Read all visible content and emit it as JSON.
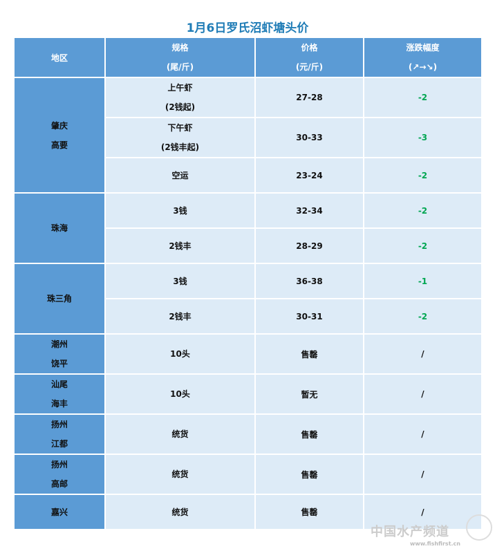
{
  "title": "1月6日罗氏沼虾塘头价",
  "headers": {
    "region": "地区",
    "spec": [
      "规格",
      "(尾/斤)"
    ],
    "price": [
      "价格",
      "(元/斤)"
    ],
    "change": [
      "涨跌幅度",
      "(↗→↘)"
    ]
  },
  "groups": [
    {
      "region": [
        "肇庆",
        "高要"
      ],
      "rows": [
        {
          "spec": [
            "上午虾",
            "(2钱起)"
          ],
          "price": "27-28",
          "change": "-2"
        },
        {
          "spec": [
            "下午虾",
            "(2钱丰起)"
          ],
          "price": "30-33",
          "change": "-3"
        },
        {
          "spec": [
            "空运"
          ],
          "price": "23-24",
          "change": "-2"
        }
      ]
    },
    {
      "region": [
        "珠海"
      ],
      "rows": [
        {
          "spec": [
            "3钱"
          ],
          "price": "32-34",
          "change": "-2"
        },
        {
          "spec": [
            "2钱丰"
          ],
          "price": "28-29",
          "change": "-2"
        }
      ]
    },
    {
      "region": [
        "珠三角"
      ],
      "rows": [
        {
          "spec": [
            "3钱"
          ],
          "price": "36-38",
          "change": "-1"
        },
        {
          "spec": [
            "2钱丰"
          ],
          "price": "30-31",
          "change": "-2"
        }
      ]
    },
    {
      "region": [
        "潮州",
        "饶平"
      ],
      "rows": [
        {
          "spec": [
            "10头"
          ],
          "price": "售罄",
          "change": "/"
        }
      ]
    },
    {
      "region": [
        "汕尾",
        "海丰"
      ],
      "rows": [
        {
          "spec": [
            "10头"
          ],
          "price": "暂无",
          "change": "/"
        }
      ]
    },
    {
      "region": [
        "扬州",
        "江都"
      ],
      "rows": [
        {
          "spec": [
            "统货"
          ],
          "price": "售罄",
          "change": "/"
        }
      ]
    },
    {
      "region": [
        "扬州",
        "高邮"
      ],
      "rows": [
        {
          "spec": [
            "统货"
          ],
          "price": "售罄",
          "change": "/"
        }
      ]
    },
    {
      "region": [
        "嘉兴"
      ],
      "rows": [
        {
          "spec": [
            "统货"
          ],
          "price": "售罄",
          "change": "/"
        }
      ]
    }
  ],
  "watermark": {
    "name": "中国水产频道",
    "url": "www.fishfirst.cn"
  },
  "colors": {
    "header_bg": "#5b9bd5",
    "cell_bg": "#ddebf7",
    "title": "#1f7cb6",
    "decrease": "#00a651"
  }
}
